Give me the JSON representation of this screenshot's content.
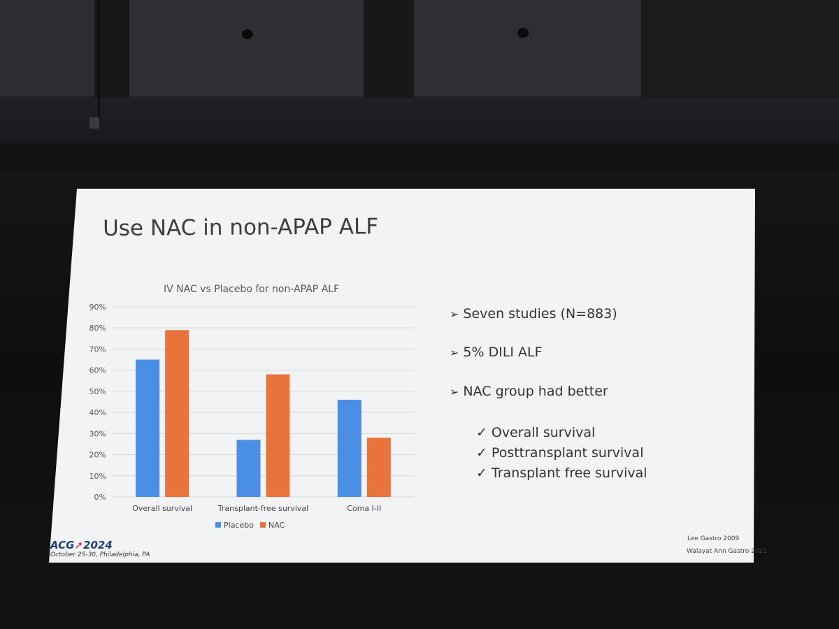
{
  "slide": {
    "title": "Use NAC in non-APAP ALF",
    "bullets": [
      "Seven studies (N=883)",
      "5% DILI ALF",
      "NAC group had better"
    ],
    "bullet_mark": "➢",
    "subpoints": [
      "Overall survival",
      "Posttransplant survival",
      "Transplant free survival"
    ],
    "check_mark": "✓",
    "logo": {
      "prefix": "ACG",
      "arrow": "➚",
      "year": "2024"
    },
    "event_line": "October 25-30, Philadelphia, PA",
    "references": [
      "Lee Gastro 2009",
      "Walayat Ann Gastro 2021"
    ]
  },
  "chart_data": {
    "type": "bar",
    "title": "IV NAC vs Placebo for non-APAP ALF",
    "categories": [
      "Overall survival",
      "Transplant-free survival",
      "Coma I-II"
    ],
    "series": [
      {
        "name": "Placebo",
        "values": [
          65,
          27,
          46
        ],
        "color": "#4a8ee6"
      },
      {
        "name": "NAC",
        "values": [
          79,
          58,
          28
        ],
        "color": "#e8743b"
      }
    ],
    "yticks": [
      "0%",
      "10%",
      "20%",
      "30%",
      "40%",
      "50%",
      "60%",
      "70%",
      "80%",
      "90%"
    ],
    "ylim": [
      0,
      90
    ],
    "grid": true,
    "legend": "bottom"
  }
}
